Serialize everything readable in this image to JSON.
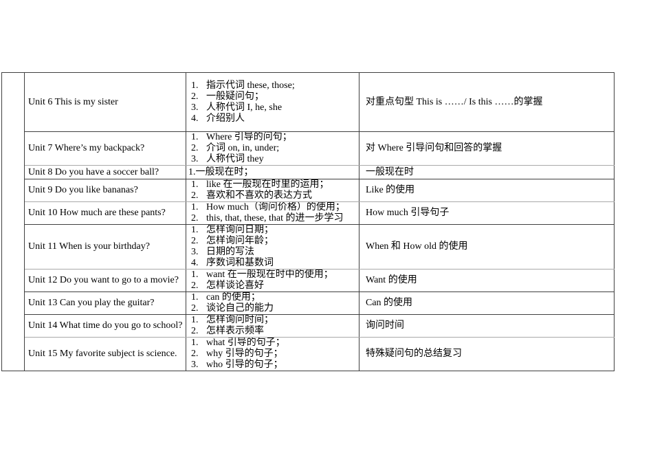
{
  "page": {
    "background_color": "#ffffff",
    "border_color": "#3e3e3e",
    "light_border_color": "#a9a9a9",
    "text_color": "#000000"
  },
  "table": {
    "rows": [
      {
        "unit": "Unit 6 This is my sister",
        "points": [
          "指示代词 these, those;",
          "一般疑问句；",
          "人称代词 I, he, she",
          "介绍别人"
        ],
        "summary": "对重点句型 This is ……/ Is this ……的掌握"
      },
      {
        "unit": "Unit 7 Where’s my backpack?",
        "points": [
          "Where 引导的问句；",
          "介词 on, in, under;",
          "人称代词 they"
        ],
        "summary": "对 Where 引导问句和回答的掌握"
      },
      {
        "unit": "Unit 8 Do you have a soccer ball?",
        "points_plain": "1.一般现在时；",
        "summary": "一般现在时"
      },
      {
        "unit": "Unit 9 Do you like bananas?",
        "points": [
          "like 在一般现在时里的运用；",
          "喜欢和不喜欢的表达方式"
        ],
        "summary": "Like 的使用"
      },
      {
        "unit": "Unit 10 How much are these pants?",
        "points": [
          "How much（询问价格）的使用；",
          "this, that, these, that 的进一步学习"
        ],
        "summary": "How much 引导句子"
      },
      {
        "unit": "Unit 11 When is your birthday?",
        "points": [
          "怎样询问日期；",
          "怎样询问年龄；",
          "日期的写法",
          "序数词和基数词"
        ],
        "summary": "When 和 How old 的使用"
      },
      {
        "unit": "Unit 12 Do you want to go to a movie?",
        "points": [
          "want 在一般现在时中的使用；",
          "怎样谈论喜好"
        ],
        "summary": "Want 的使用"
      },
      {
        "unit": "Unit 13 Can you play the guitar?",
        "points": [
          "can 的使用；",
          "谈论自己的能力"
        ],
        "summary": "Can 的使用"
      },
      {
        "unit": "Unit 14 What time do you go to school?",
        "points": [
          "怎样询问时间；",
          "怎样表示频率"
        ],
        "summary": "询问时间"
      },
      {
        "unit": "Unit 15 My favorite subject is science.",
        "points": [
          "what 引导的句子；",
          "why 引导的句子；",
          "who 引导的句子；"
        ],
        "summary": "特殊疑问句的总结复习"
      }
    ]
  }
}
